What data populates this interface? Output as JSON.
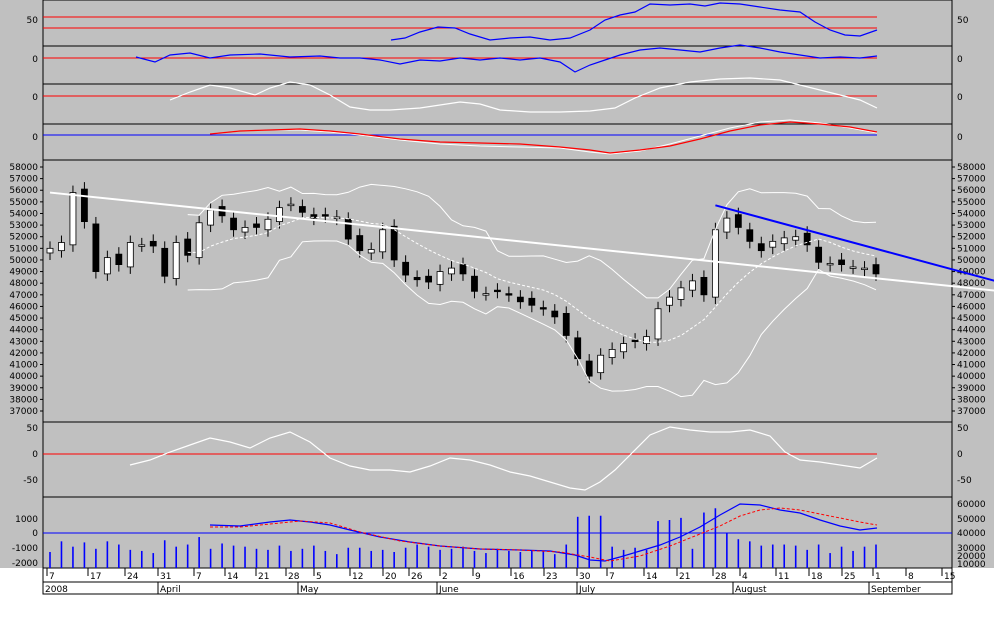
{
  "chart_data": {
    "type": "candlestick",
    "colors": {
      "background": "#c0c0c0",
      "grid_red": "#ff0000",
      "grid_blue": "#0000ff",
      "line_blue": "#0000ff",
      "line_white": "#ffffff",
      "line_red": "#ff0000",
      "candle_fill_down": "#000000",
      "candle_fill_up": "#ffffff"
    },
    "x_axis": {
      "date_ticks": [
        "7",
        "17",
        "24",
        "31",
        "7",
        "14",
        "21",
        "28",
        "5",
        "12",
        "20",
        "26",
        "2",
        "9",
        "16",
        "23",
        "30",
        "7",
        "14",
        "21",
        "28",
        "4",
        "11",
        "18",
        "25",
        "1",
        "8",
        "15"
      ],
      "month_labels": [
        "April",
        "May",
        "June",
        "July",
        "August",
        "September"
      ],
      "year_label": "2008"
    },
    "price_panel": {
      "ylim": [
        36000,
        59000
      ],
      "tick_labels": [
        "58000",
        "57000",
        "56000",
        "55000",
        "54000",
        "53000",
        "52000",
        "51000",
        "50000",
        "49000",
        "48000",
        "47000",
        "46000",
        "45000",
        "44000",
        "43000",
        "42000",
        "41000",
        "40000",
        "39000",
        "38000",
        "37000"
      ],
      "candles_close": [
        51000,
        51500,
        55800,
        53300,
        49000,
        50200,
        49600,
        51500,
        51300,
        51200,
        48600,
        51500,
        50400,
        53200,
        54300,
        53800,
        52600,
        52800,
        52800,
        53500,
        54500,
        54800,
        54100,
        53600,
        53800,
        53700,
        51800,
        50800,
        50900,
        52600,
        50000,
        48700,
        48300,
        48100,
        49000,
        49300,
        48800,
        47300,
        47100,
        47300,
        47000,
        46400,
        46100,
        45800,
        45100,
        43500,
        41500,
        40000,
        41800,
        42300,
        42800,
        43000,
        43400,
        45800,
        46800,
        47600,
        48200,
        47000,
        52600,
        53600,
        52800,
        51600,
        50800,
        51600,
        51900,
        52000,
        51300,
        49800,
        49700,
        49600,
        49400,
        49300,
        48800
      ],
      "trendlines": [
        {
          "color": "white",
          "from": [
            0,
            55800
          ],
          "to": [
            78,
            47700
          ]
        },
        {
          "color": "blue",
          "from": [
            58,
            54700
          ],
          "to": [
            78,
            49000
          ]
        }
      ]
    },
    "top_panels": [
      {
        "name": "panel1",
        "tick_labels": [
          "50",
          "0"
        ],
        "gridlines": [
          "red",
          "red"
        ]
      },
      {
        "name": "panel2",
        "tick_labels": [
          "0"
        ],
        "gridlines": [
          "red"
        ]
      },
      {
        "name": "panel3",
        "tick_labels": [
          "0"
        ],
        "gridlines": [
          "red"
        ]
      },
      {
        "name": "panel4",
        "tick_labels": [
          "0"
        ],
        "gridlines": [
          "blue"
        ]
      }
    ],
    "oscillator_panel": {
      "tick_labels": [
        "50",
        "0",
        "-50"
      ]
    },
    "volume_panel": {
      "left_tick_labels": [
        "1000",
        "0",
        "-1000",
        "-2000"
      ],
      "right_tick_labels": [
        "60000",
        "50000",
        "40000",
        "30000",
        "20000",
        "10000"
      ],
      "volume": [
        15000,
        25000,
        20000,
        24000,
        18000,
        25000,
        22000,
        17000,
        16000,
        14000,
        26000,
        20000,
        22000,
        29000,
        18000,
        23000,
        21000,
        20000,
        18000,
        17000,
        21000,
        16000,
        18000,
        21000,
        16000,
        13000,
        19000,
        19000,
        16000,
        17000,
        15000,
        19000,
        22000,
        20000,
        17000,
        18000,
        20000,
        16000,
        14000,
        18000,
        16000,
        15000,
        16000,
        16000,
        13000,
        22000,
        48000,
        49000,
        49000,
        20000,
        17000,
        19000,
        17000,
        44000,
        45000,
        47000,
        18000,
        52000,
        56000,
        33000,
        27000,
        25000,
        21000,
        22000,
        22000,
        21000,
        17000,
        22000,
        14000,
        20000,
        16000,
        20000,
        22000
      ]
    }
  }
}
